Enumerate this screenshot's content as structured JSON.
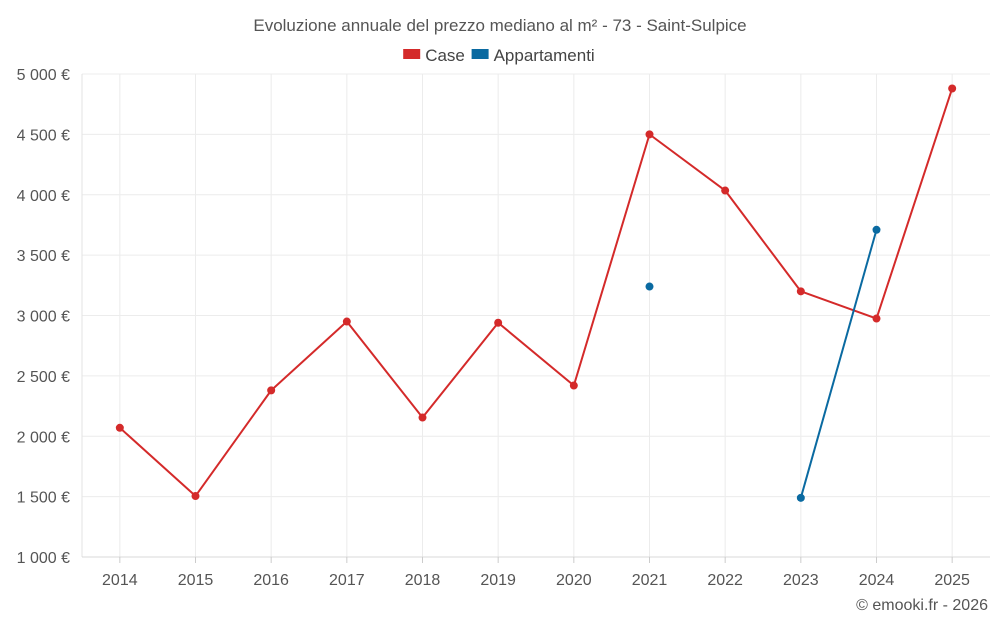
{
  "chart_data": {
    "type": "line",
    "title": "Evoluzione annuale del prezzo mediano al m² - 73 - Saint-Sulpice",
    "categories": [
      "2014",
      "2015",
      "2016",
      "2017",
      "2018",
      "2019",
      "2020",
      "2021",
      "2022",
      "2023",
      "2024",
      "2025"
    ],
    "y_ticks": [
      1000,
      1500,
      2000,
      2500,
      3000,
      3500,
      4000,
      4500,
      5000
    ],
    "y_tick_labels": [
      "1 000 €",
      "1 500 €",
      "2 000 €",
      "2 500 €",
      "3 000 €",
      "3 500 €",
      "4 000 €",
      "4 500 €",
      "5 000 €"
    ],
    "ylim": [
      1000,
      5000
    ],
    "grid": true,
    "legend_position": "top-center",
    "series": [
      {
        "name": "Case",
        "color": "#d42a2a",
        "values": [
          2070,
          1505,
          2380,
          2950,
          2155,
          2940,
          2420,
          4500,
          4035,
          3200,
          2975,
          4880
        ]
      },
      {
        "name": "Appartamenti",
        "color": "#0a6aa1",
        "values": [
          null,
          null,
          null,
          null,
          null,
          null,
          null,
          3240,
          null,
          1490,
          3710,
          null
        ]
      }
    ],
    "credit": "© emooki.fr - 2026"
  }
}
